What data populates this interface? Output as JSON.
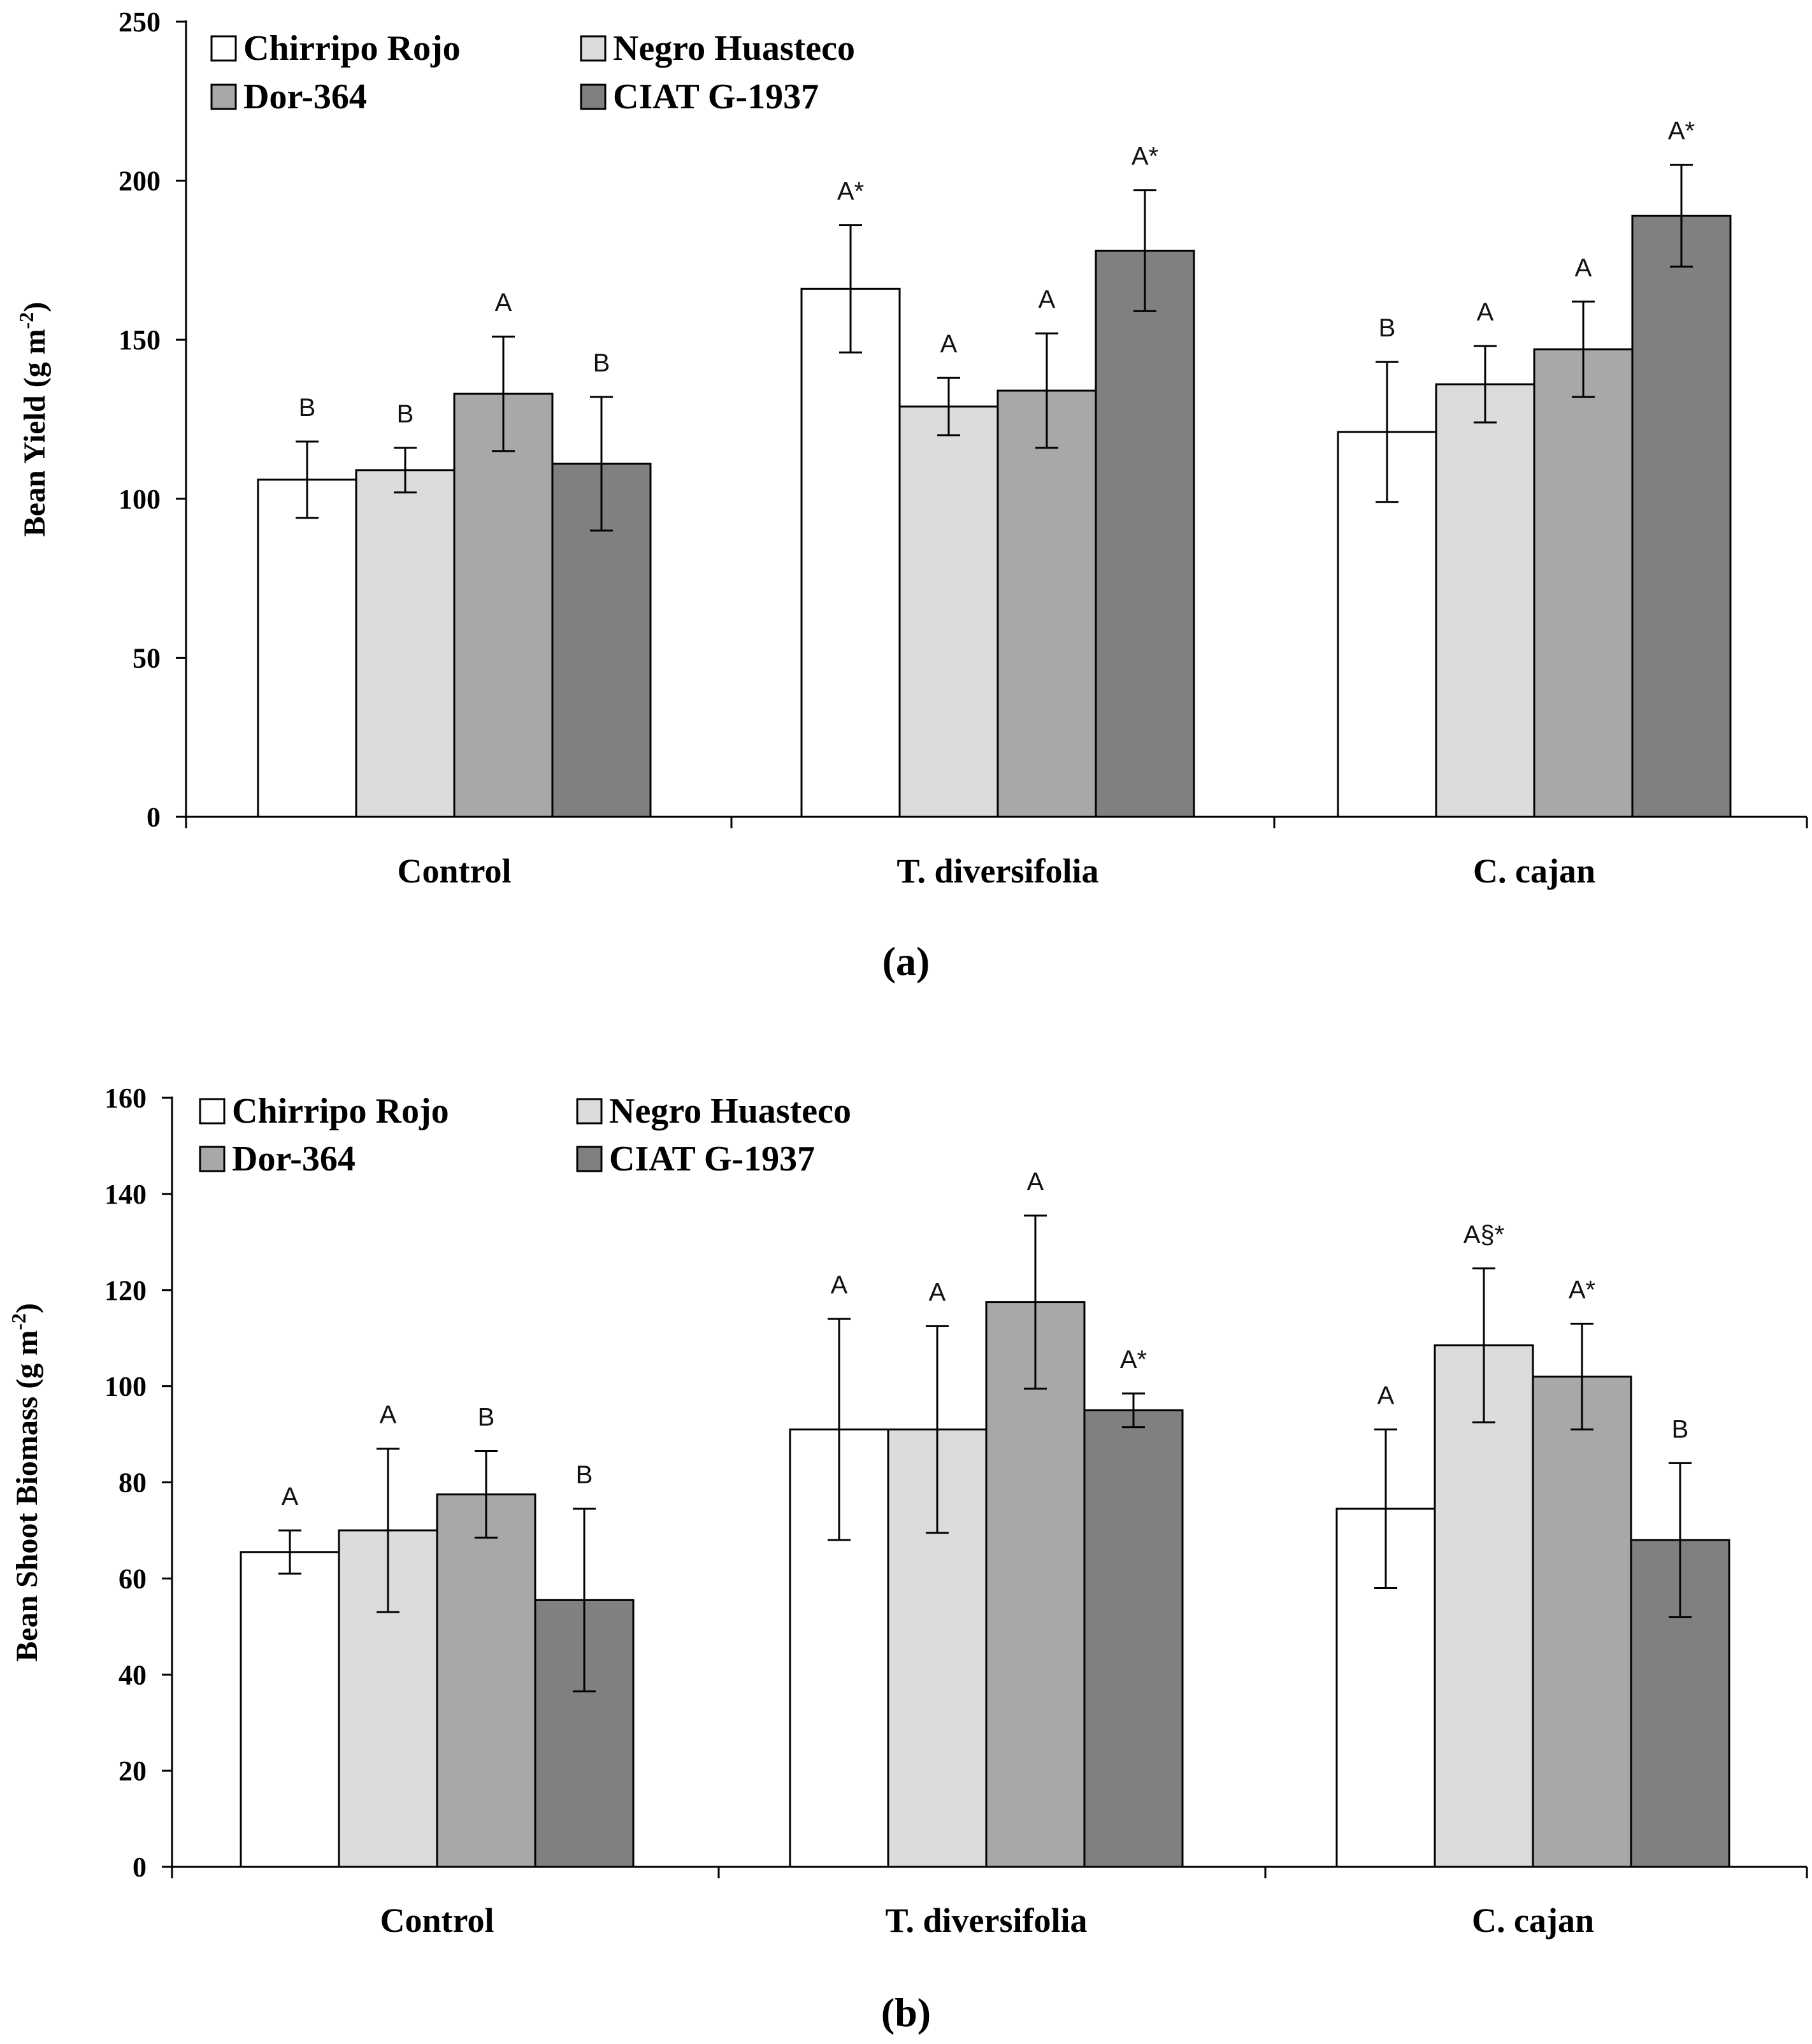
{
  "chart_data": [
    {
      "type": "bar",
      "panel_label": "a",
      "ylabel": "Bean Yield",
      "ylabel_unit": "(g m",
      "ylabel_exp": "-2",
      "ylim": [
        0,
        250
      ],
      "yticks": [
        0,
        50,
        100,
        150,
        200,
        250
      ],
      "categories": [
        "Control",
        "T. diversifolia",
        "C. cajan"
      ],
      "legend_placement": "top-left",
      "series": [
        {
          "name": "Chirripo Rojo",
          "color": "#ffffff",
          "values": [
            106,
            166,
            121
          ],
          "errors": [
            12,
            20,
            22
          ],
          "labels": [
            "B",
            "A*",
            "B"
          ]
        },
        {
          "name": "Negro Huasteco",
          "color": "#dcdcdc",
          "values": [
            109,
            129,
            136
          ],
          "errors": [
            7,
            9,
            12
          ],
          "labels": [
            "B",
            "A",
            "A"
          ]
        },
        {
          "name": "Dor-364",
          "color": "#a8a8a8",
          "values": [
            133,
            134,
            147
          ],
          "errors": [
            18,
            18,
            15
          ],
          "labels": [
            "A",
            "A",
            "A"
          ]
        },
        {
          "name": "CIAT G-1937",
          "color": "#808080",
          "values": [
            111,
            178,
            189
          ],
          "errors": [
            21,
            19,
            16
          ],
          "labels": [
            "B",
            "A*",
            "A*"
          ]
        }
      ]
    },
    {
      "type": "bar",
      "panel_label": "b",
      "ylabel": "Bean Shoot Biomass",
      "ylabel_unit": "(g m",
      "ylabel_exp": "-2",
      "ylim": [
        0,
        160
      ],
      "yticks": [
        0,
        20,
        40,
        60,
        80,
        100,
        120,
        140,
        160
      ],
      "categories": [
        "Control",
        "T. diversifolia",
        "C. cajan"
      ],
      "legend_placement": "top-left",
      "series": [
        {
          "name": "Chirripo Rojo",
          "color": "#ffffff",
          "values": [
            65.5,
            91,
            74.5
          ],
          "errors": [
            4.5,
            23,
            16.5
          ],
          "labels": [
            "A",
            "A",
            "A"
          ]
        },
        {
          "name": "Negro Huasteco",
          "color": "#dcdcdc",
          "values": [
            70,
            91,
            108.5
          ],
          "errors": [
            17,
            21.5,
            16
          ],
          "labels": [
            "A",
            "A",
            "A§*"
          ]
        },
        {
          "name": "Dor-364",
          "color": "#a8a8a8",
          "values": [
            77.5,
            117.5,
            102
          ],
          "errors": [
            9,
            18,
            11
          ],
          "labels": [
            "B",
            "A",
            "A*"
          ]
        },
        {
          "name": "CIAT G-1937",
          "color": "#808080",
          "values": [
            55.5,
            95,
            68
          ],
          "errors": [
            19,
            3.5,
            16
          ],
          "labels": [
            "B",
            "A*",
            "B"
          ]
        }
      ]
    }
  ]
}
